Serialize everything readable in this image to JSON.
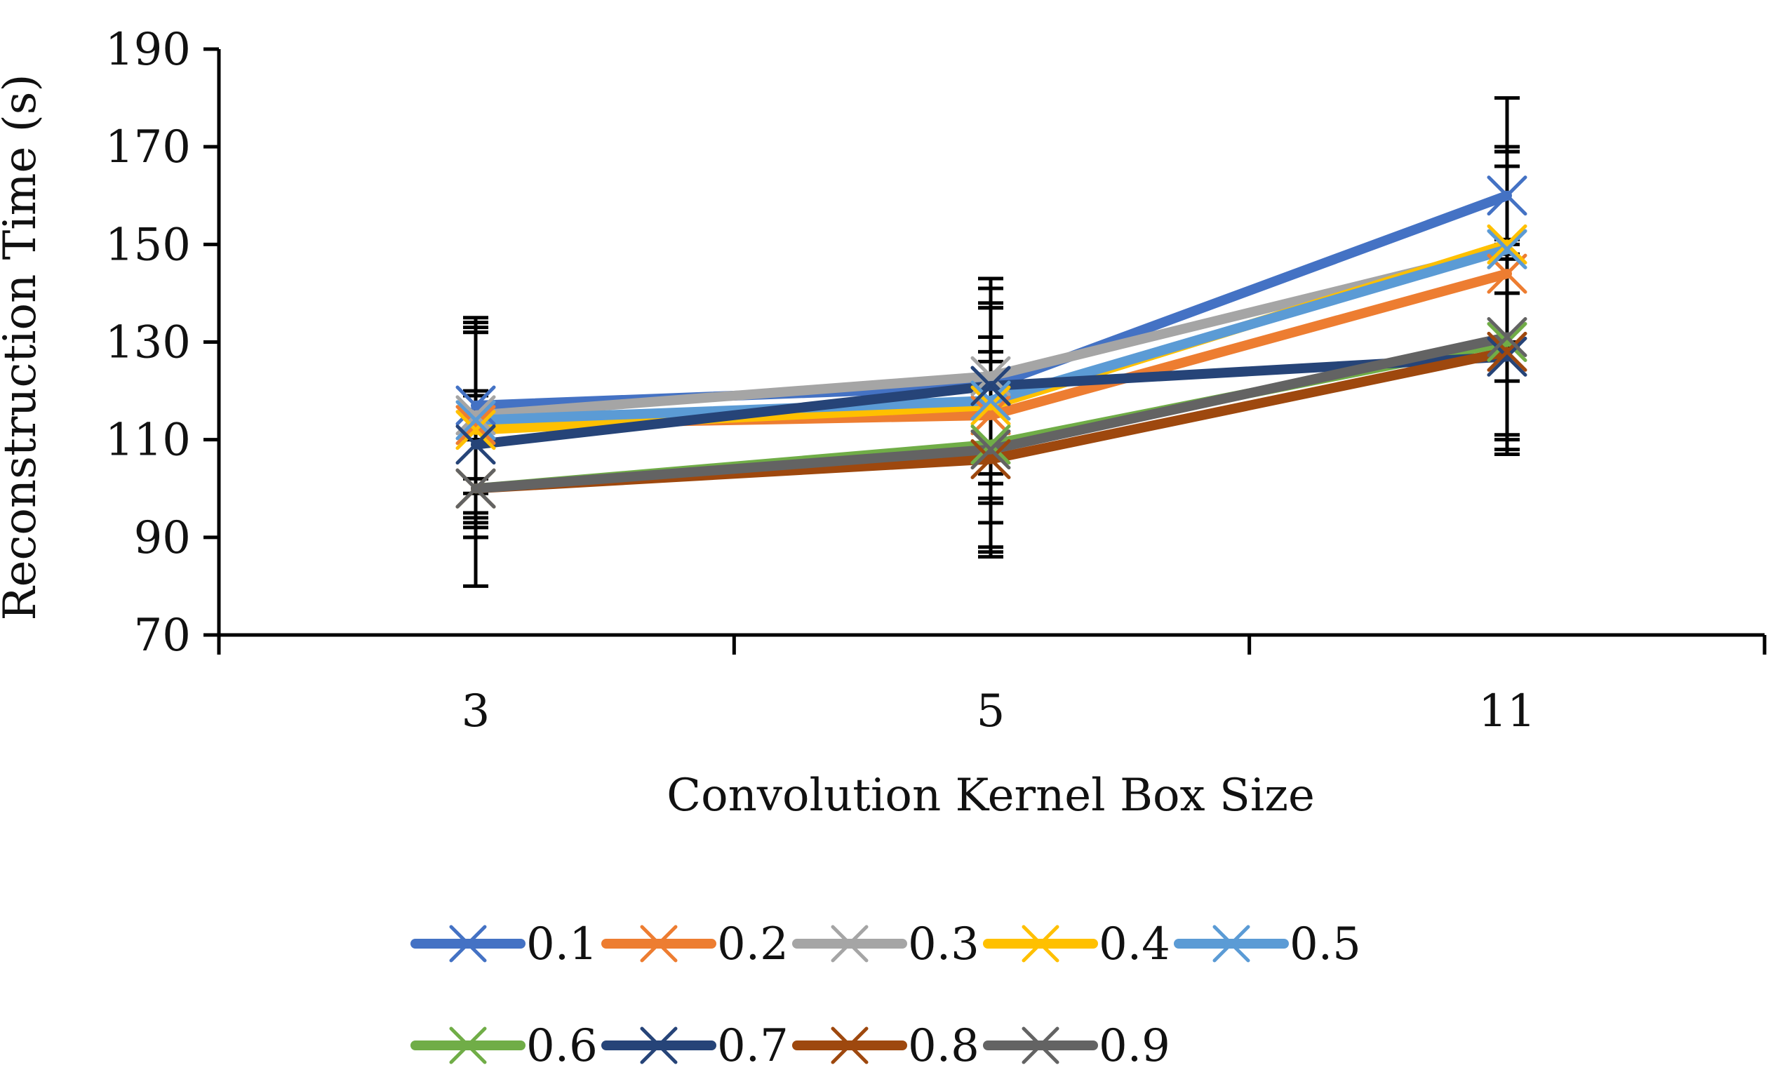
{
  "chart_data": {
    "type": "line",
    "title": "",
    "xlabel": "Convolution Kernel Box Size",
    "ylabel": "Reconstruction Time (s)",
    "categories": [
      "3",
      "5",
      "11"
    ],
    "ylim": [
      70,
      190
    ],
    "yticks": [
      "70",
      "90",
      "110",
      "130",
      "150",
      "170",
      "190"
    ],
    "grid": false,
    "legend_position": "bottom",
    "marker": "x",
    "error_bars": true,
    "series": [
      {
        "name": "0.1",
        "color": "#4472C4",
        "values": [
          117,
          121,
          160
        ],
        "errors": [
          15,
          20,
          20
        ]
      },
      {
        "name": "0.2",
        "color": "#ED7D31",
        "values": [
          113,
          115,
          144
        ],
        "errors": [
          20,
          22,
          22
        ]
      },
      {
        "name": "0.3",
        "color": "#A5A5A5",
        "values": [
          115,
          123,
          149
        ],
        "errors": [
          20,
          20,
          20
        ]
      },
      {
        "name": "0.4",
        "color": "#FFC000",
        "values": [
          112,
          117,
          150
        ],
        "errors": [
          20,
          20,
          20
        ]
      },
      {
        "name": "0.5",
        "color": "#5B9BD5",
        "values": [
          114,
          118,
          149
        ],
        "errors": [
          20,
          20,
          20
        ]
      },
      {
        "name": "0.6",
        "color": "#70AD47",
        "values": [
          100,
          109,
          130
        ],
        "errors": [
          10,
          22,
          20
        ]
      },
      {
        "name": "0.7",
        "color": "#264478",
        "values": [
          109,
          121,
          127
        ],
        "errors": [
          10,
          20,
          20
        ]
      },
      {
        "name": "0.8",
        "color": "#9E480E",
        "values": [
          100,
          106,
          128
        ],
        "errors": [
          20,
          20,
          20
        ]
      },
      {
        "name": "0.9",
        "color": "#636363",
        "values": [
          100,
          108,
          131
        ],
        "errors": [
          10,
          20,
          20
        ]
      }
    ]
  }
}
